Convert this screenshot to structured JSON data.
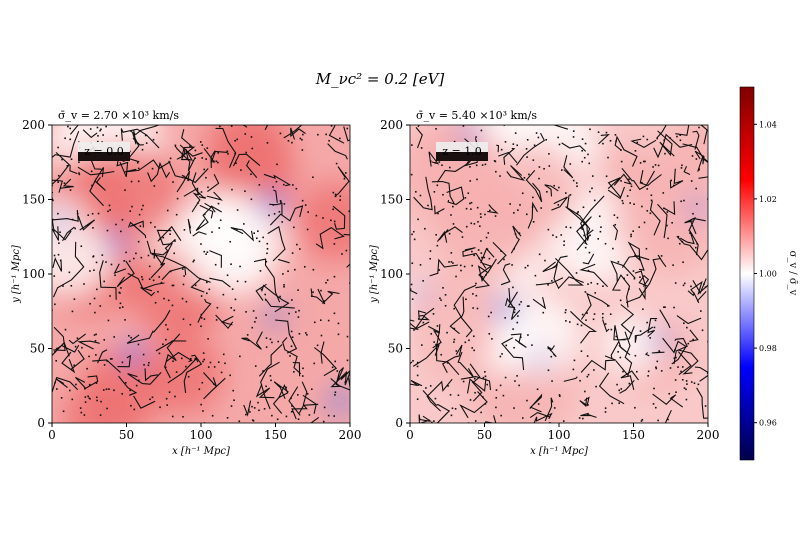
{
  "chart_data": {
    "type": "heatmap",
    "title": "M_νc² = 0.2 [eV]",
    "panels": [
      {
        "subtitle": "σ̄_v = 2.70 ×10³ km/s",
        "legend": "z = 0.0",
        "xlabel": "x [h⁻¹ Mpc]",
        "ylabel": "y [h⁻¹ Mpc]",
        "xlim": [
          0,
          200
        ],
        "ylim": [
          0,
          200
        ],
        "xticks": [
          "0",
          "50",
          "100",
          "150",
          "200"
        ],
        "yticks": [
          "0",
          "50",
          "100",
          "150",
          "200"
        ]
      },
      {
        "subtitle": "σ̄_v = 5.40 ×10³ km/s",
        "legend": "z = 1.0",
        "xlabel": "x [h⁻¹ Mpc]",
        "ylabel": "y [h⁻¹ Mpc]",
        "xlim": [
          0,
          200
        ],
        "ylim": [
          0,
          200
        ],
        "xticks": [
          "0",
          "50",
          "100",
          "150",
          "200"
        ],
        "yticks": [
          "0",
          "50",
          "100",
          "150",
          "200"
        ]
      }
    ],
    "colorbar": {
      "label": "σ_v / σ̄_v",
      "range": [
        0.95,
        1.05
      ],
      "ticks": [
        "0.96",
        "0.98",
        "1.00",
        "1.02",
        "1.04"
      ],
      "tick_values": [
        0.96,
        0.98,
        1.0,
        1.02,
        1.04
      ],
      "colormap": "seismic"
    }
  }
}
